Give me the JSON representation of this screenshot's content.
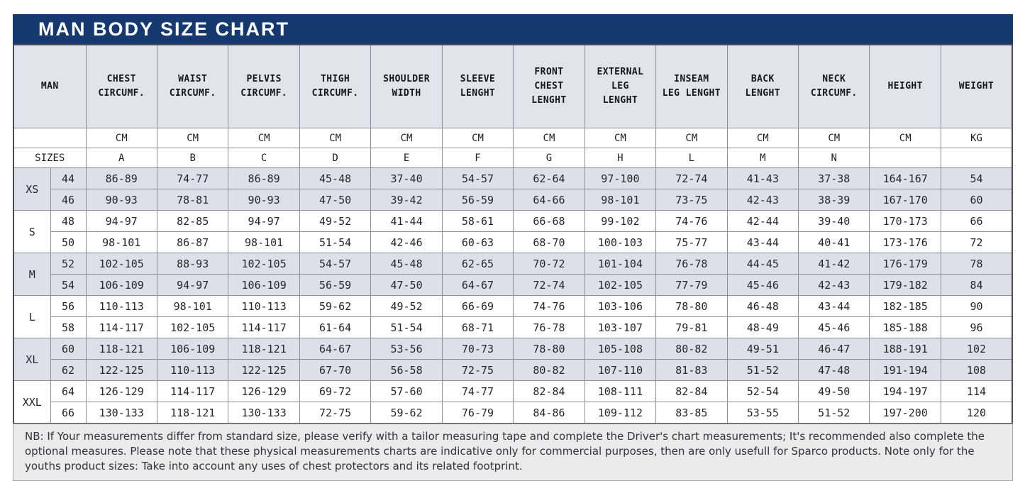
{
  "title": "MAN BODY SIZE CHART",
  "chart_data": {
    "type": "table",
    "title": "MAN BODY SIZE CHART",
    "columns": [
      "MAN",
      "CHEST\nCIRCUMF.",
      "WAIST\nCIRCUMF.",
      "PELVIS\nCIRCUMF.",
      "THIGH\nCIRCUMF.",
      "SHOULDER\nWIDTH",
      "SLEEVE\nLENGHT",
      "FRONT\nCHEST\nLENGHT",
      "EXTERNAL\nLEG\nLENGHT",
      "INSEAM\nLEG LENGHT",
      "BACK\nLENGHT",
      "NECK\nCIRCUMF.",
      "HEIGHT",
      "WEIGHT"
    ],
    "units": [
      "CM",
      "CM",
      "CM",
      "CM",
      "CM",
      "CM",
      "CM",
      "CM",
      "CM",
      "CM",
      "CM",
      "CM",
      "KG"
    ],
    "sizes_label": "SIZES",
    "letters": [
      "A",
      "B",
      "C",
      "D",
      "E",
      "F",
      "G",
      "H",
      "L",
      "M",
      "N",
      "",
      ""
    ],
    "groups": [
      {
        "label": "XS",
        "shaded": true,
        "rows": [
          {
            "size": "44",
            "values": [
              "86-89",
              "74-77",
              "86-89",
              "45-48",
              "37-40",
              "54-57",
              "62-64",
              "97-100",
              "72-74",
              "41-43",
              "37-38",
              "164-167",
              "54"
            ]
          },
          {
            "size": "46",
            "values": [
              "90-93",
              "78-81",
              "90-93",
              "47-50",
              "39-42",
              "56-59",
              "64-66",
              "98-101",
              "73-75",
              "42-43",
              "38-39",
              "167-170",
              "60"
            ]
          }
        ]
      },
      {
        "label": "S",
        "shaded": false,
        "rows": [
          {
            "size": "48",
            "values": [
              "94-97",
              "82-85",
              "94-97",
              "49-52",
              "41-44",
              "58-61",
              "66-68",
              "99-102",
              "74-76",
              "42-44",
              "39-40",
              "170-173",
              "66"
            ]
          },
          {
            "size": "50",
            "values": [
              "98-101",
              "86-87",
              "98-101",
              "51-54",
              "42-46",
              "60-63",
              "68-70",
              "100-103",
              "75-77",
              "43-44",
              "40-41",
              "173-176",
              "72"
            ]
          }
        ]
      },
      {
        "label": "M",
        "shaded": true,
        "rows": [
          {
            "size": "52",
            "values": [
              "102-105",
              "88-93",
              "102-105",
              "54-57",
              "45-48",
              "62-65",
              "70-72",
              "101-104",
              "76-78",
              "44-45",
              "41-42",
              "176-179",
              "78"
            ]
          },
          {
            "size": "54",
            "values": [
              "106-109",
              "94-97",
              "106-109",
              "56-59",
              "47-50",
              "64-67",
              "72-74",
              "102-105",
              "77-79",
              "45-46",
              "42-43",
              "179-182",
              "84"
            ]
          }
        ]
      },
      {
        "label": "L",
        "shaded": false,
        "rows": [
          {
            "size": "56",
            "values": [
              "110-113",
              "98-101",
              "110-113",
              "59-62",
              "49-52",
              "66-69",
              "74-76",
              "103-106",
              "78-80",
              "46-48",
              "43-44",
              "182-185",
              "90"
            ]
          },
          {
            "size": "58",
            "values": [
              "114-117",
              "102-105",
              "114-117",
              "61-64",
              "51-54",
              "68-71",
              "76-78",
              "103-107",
              "79-81",
              "48-49",
              "45-46",
              "185-188",
              "96"
            ]
          }
        ]
      },
      {
        "label": "XL",
        "shaded": true,
        "rows": [
          {
            "size": "60",
            "values": [
              "118-121",
              "106-109",
              "118-121",
              "64-67",
              "53-56",
              "70-73",
              "78-80",
              "105-108",
              "80-82",
              "49-51",
              "46-47",
              "188-191",
              "102"
            ]
          },
          {
            "size": "62",
            "values": [
              "122-125",
              "110-113",
              "122-125",
              "67-70",
              "56-58",
              "72-75",
              "80-82",
              "107-110",
              "81-83",
              "51-52",
              "47-48",
              "191-194",
              "108"
            ]
          }
        ]
      },
      {
        "label": "XXL",
        "shaded": false,
        "rows": [
          {
            "size": "64",
            "values": [
              "126-129",
              "114-117",
              "126-129",
              "69-72",
              "57-60",
              "74-77",
              "82-84",
              "108-111",
              "82-84",
              "52-54",
              "49-50",
              "194-197",
              "114"
            ]
          },
          {
            "size": "66",
            "values": [
              "130-133",
              "118-121",
              "130-133",
              "72-75",
              "59-62",
              "76-79",
              "84-86",
              "109-112",
              "83-85",
              "53-55",
              "51-52",
              "197-200",
              "120"
            ]
          }
        ]
      }
    ]
  },
  "note": "NB: If Your measurements differ from standard size, please verify with a tailor measuring tape and complete the Driver's chart measurements; It's recommended also complete the optional measures. Please note that these physical measurements charts are indicative only for commercial purposes, then are only usefull for Sparco products. Note only for the youths product sizes: Take into account any uses of chest protectors and its related footprint.",
  "colors": {
    "title_bar": "#15396e",
    "title_text": "#ffffff",
    "header_bg": "#e3e3ec",
    "shaded_row_bg": "#dfdfea",
    "note_bg": "#ebebeb",
    "grid_line": "#8f8f99",
    "outer_border": "#4c4c55"
  }
}
